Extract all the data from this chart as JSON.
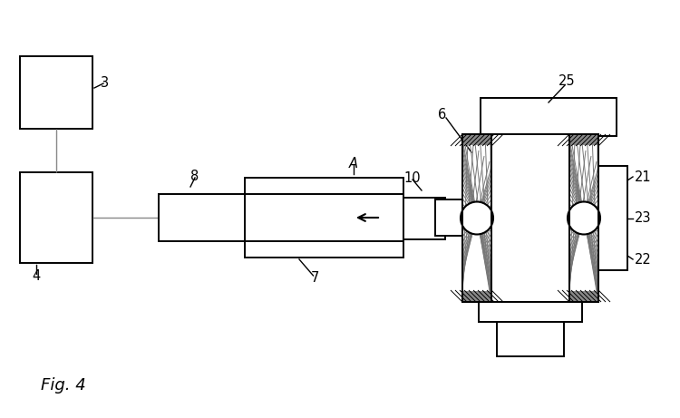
{
  "bg": "#ffffff",
  "lc": "#000000",
  "fig_label": "Fig. 4",
  "lw": 1.4,
  "fs": 10.5
}
